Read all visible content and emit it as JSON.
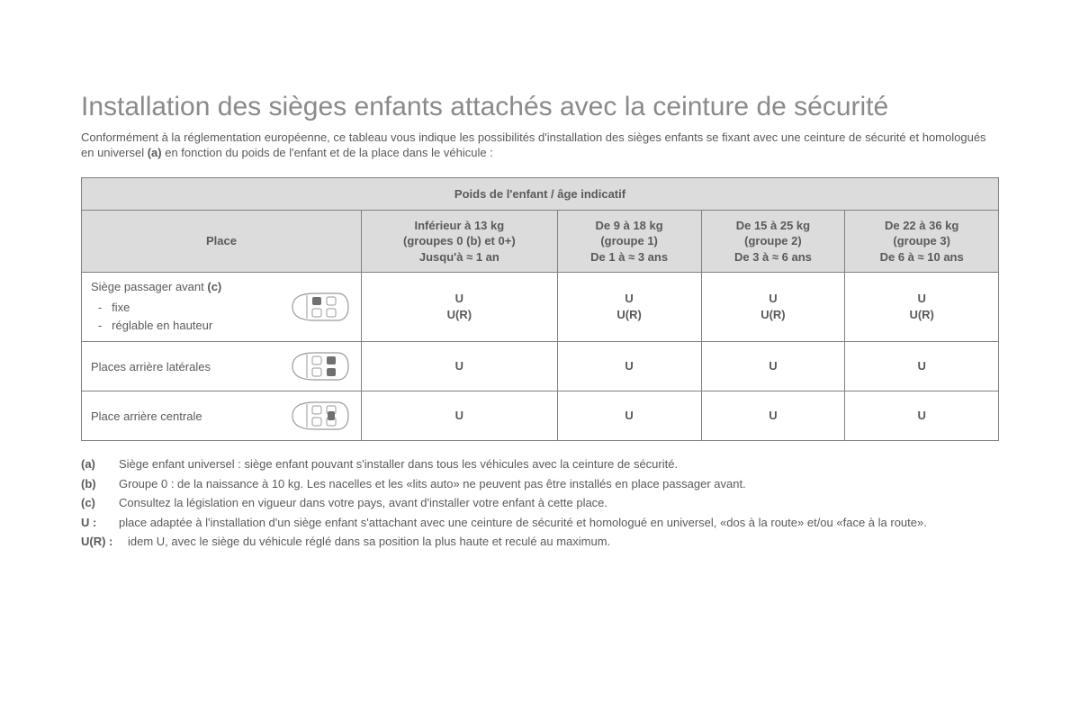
{
  "colors": {
    "text": "#5a5a5a",
    "heading": "#8a8a8a",
    "header_bg": "#dcdcdc",
    "border": "#808080",
    "page_bg": "#ffffff",
    "car_stroke": "#9a9a9a",
    "seat_fill": "#707070"
  },
  "typography": {
    "heading_fontsize_pt": 22,
    "body_fontsize_pt": 10,
    "font_family": "Arial"
  },
  "title": "Installation des sièges enfants attachés avec la ceinture de sécurité",
  "intro_before_a": "Conformément à la réglementation européenne, ce tableau vous indique les possibilités d'installation des sièges enfants se fixant avec une ceinture de sécurité et homologués en universel ",
  "intro_a": "(a)",
  "intro_after_a": " en fonction du poids de l'enfant et de la place dans le véhicule :",
  "table": {
    "header_top": "Poids de l'enfant / âge indicatif",
    "place_header": "Place",
    "weight_cols": [
      {
        "title": "Inférieur à 13 kg",
        "group_pre": "(groupes 0 ",
        "group_bold": "(b)",
        "group_post": " et 0+)",
        "age": "Jusqu'à ≈ 1 an"
      },
      {
        "title": "De 9 à 18 kg",
        "group_pre": "(groupe 1)",
        "group_bold": "",
        "group_post": "",
        "age": "De 1 à ≈ 3 ans"
      },
      {
        "title": "De 15 à 25 kg",
        "group_pre": "(groupe 2)",
        "group_bold": "",
        "group_post": "",
        "age": "De 3 à ≈ 6 ans"
      },
      {
        "title": "De 22 à 36 kg",
        "group_pre": "(groupe 3)",
        "group_bold": "",
        "group_post": "",
        "age": "De 6 à ≈ 10 ans"
      }
    ],
    "rows": [
      {
        "place_header_pre": "Siège passager avant ",
        "place_header_bold": "(c)",
        "sublines": [
          "fixe",
          "réglable en hauteur"
        ],
        "seat_highlight": "front_passenger",
        "cells": [
          "U\nU(R)",
          "U\nU(R)",
          "U\nU(R)",
          "U\nU(R)"
        ]
      },
      {
        "place_header_pre": "Places arrière latérales",
        "place_header_bold": "",
        "sublines": [],
        "seat_highlight": "rear_outer",
        "cells": [
          "U",
          "U",
          "U",
          "U"
        ]
      },
      {
        "place_header_pre": "Place arrière centrale",
        "place_header_bold": "",
        "sublines": [],
        "seat_highlight": "rear_center",
        "cells": [
          "U",
          "U",
          "U",
          "U"
        ]
      }
    ]
  },
  "footnotes": [
    {
      "tag": "(a)",
      "text": "Siège enfant universel : siège enfant pouvant s'installer dans tous les véhicules avec la ceinture de sécurité."
    },
    {
      "tag": "(b)",
      "text": "Groupe 0 : de la naissance à 10 kg. Les nacelles et les «lits auto» ne peuvent pas être installés en place passager avant."
    },
    {
      "tag": "(c)",
      "text": "Consultez la législation en vigueur dans votre pays, avant d'installer votre enfant à cette place."
    },
    {
      "tag": "U :",
      "text": "place adaptée à l'installation d'un siège enfant s'attachant avec une ceinture de sécurité et homologué en universel, «dos à la route» et/ou «face à la route»."
    },
    {
      "tag": "U(R) :",
      "text": "idem U, avec le siège du véhicule réglé dans sa position la plus haute et reculé au maximum."
    }
  ]
}
